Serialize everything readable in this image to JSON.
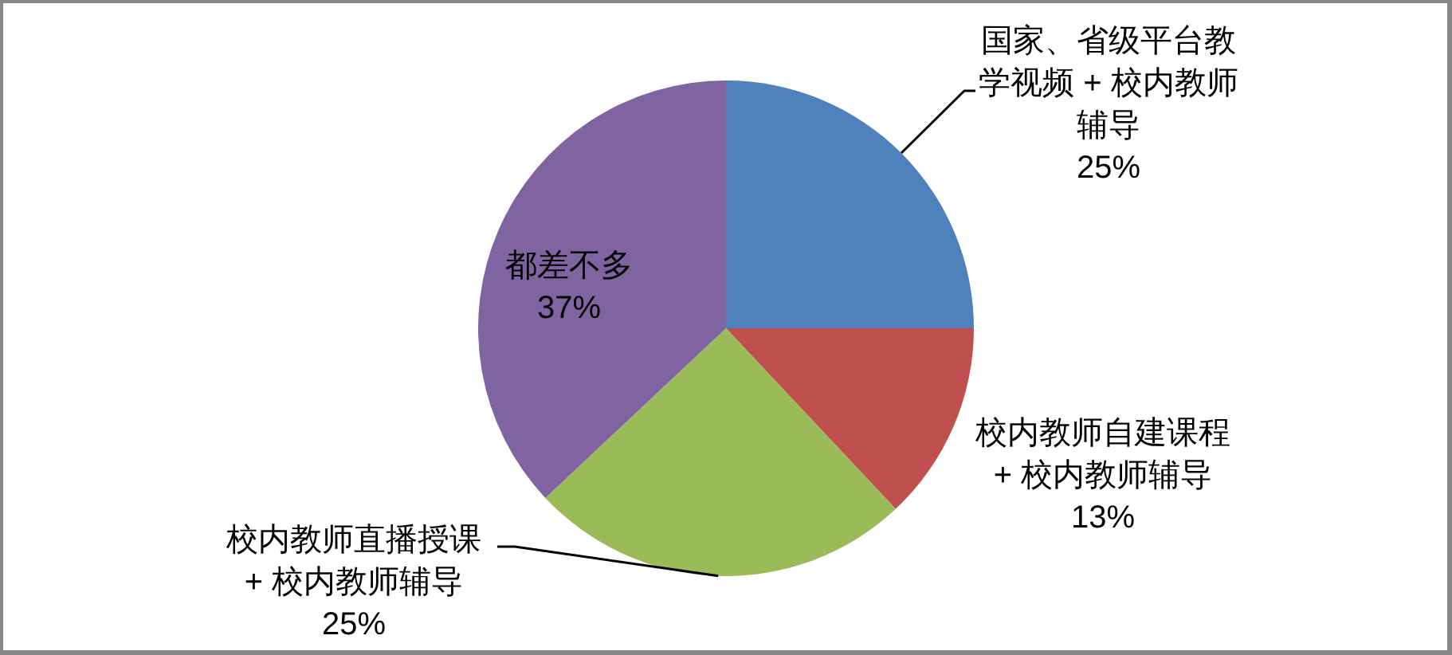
{
  "chart_data": {
    "type": "pie",
    "categories": [
      "国家、省级平台教学视频 + 校内教师辅导",
      "校内教师自建课程 + 校内教师辅导",
      "校内教师直播授课 + 校内教师辅导",
      "都差不多"
    ],
    "values": [
      25,
      13,
      25,
      37
    ],
    "colors": [
      "#4f81bd",
      "#c0504d",
      "#9bbb59",
      "#8064a2"
    ],
    "value_labels": [
      "25%",
      "13%",
      "25%",
      "37%"
    ]
  }
}
